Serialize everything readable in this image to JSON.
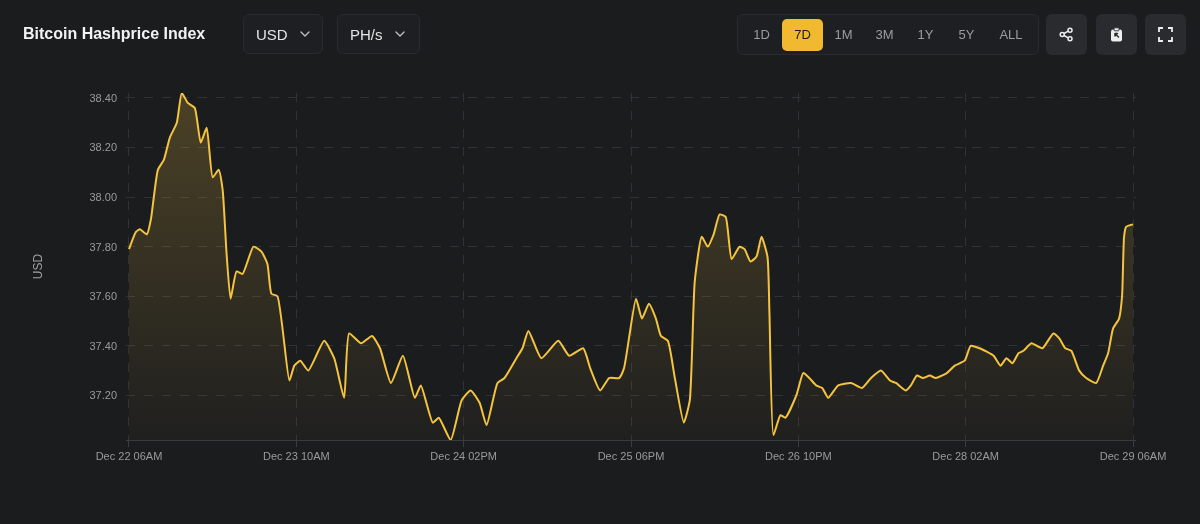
{
  "chart_data": {
    "type": "area",
    "title": "Bitcoin Hashprice Index",
    "ylabel": "USD",
    "annotations": [
      "USD",
      "PH/s",
      "1D",
      "7D",
      "1M",
      "3M",
      "1Y",
      "5Y",
      "ALL"
    ],
    "color": "#f4c43f",
    "grid": true,
    "xlim": [
      "--12-22T05:30",
      "--12-29T06:30"
    ],
    "xticks": [
      {
        "value": "--12-22T06:00",
        "label": "Dec 22 06AM"
      },
      {
        "value": "--12-23T10:00",
        "label": "Dec 23 10AM"
      },
      {
        "value": "--12-24T14:00",
        "label": "Dec 24 02PM"
      },
      {
        "value": "--12-25T18:00",
        "label": "Dec 25 06PM"
      },
      {
        "value": "--12-26T22:00",
        "label": "Dec 26 10PM"
      },
      {
        "value": "--12-28T02:00",
        "label": "Dec 28 02AM"
      },
      {
        "value": "--12-29T06:00",
        "label": "Dec 29 06AM"
      }
    ],
    "ylim": [
      37.02,
      38.42
    ],
    "yticks": [
      {
        "value": 37.2,
        "label": "37.20"
      },
      {
        "value": 37.4,
        "label": "37.40"
      },
      {
        "value": 37.6,
        "label": "37.60"
      },
      {
        "value": 37.8,
        "label": "37.80"
      },
      {
        "value": 38.0,
        "label": "38.00"
      },
      {
        "value": 38.2,
        "label": "38.20"
      },
      {
        "value": 38.4,
        "label": "38.40"
      }
    ],
    "x": [
      "--12-22T06:00",
      "--12-22T07:10",
      "--12-22T07:50",
      "--12-22T09:00",
      "--12-22T09:40",
      "--12-22T10:50",
      "--12-22T11:50",
      "--12-22T12:50",
      "--12-22T14:00",
      "--12-22T14:50",
      "--12-22T15:50",
      "--12-22T17:00",
      "--12-22T18:00",
      "--12-22T19:00",
      "--12-22T20:00",
      "--12-22T21:00",
      "--12-22T21:40",
      "--12-22T22:20",
      "--12-22T23:00",
      "--12-23T00:00",
      "--12-23T01:00",
      "--12-23T02:50",
      "--12-23T04:10",
      "--12-23T05:10",
      "--12-23T05:50",
      "--12-23T06:50",
      "--12-23T08:50",
      "--12-23T09:40",
      "--12-23T10:40",
      "--12-23T12:00",
      "--12-23T14:40",
      "--12-23T16:20",
      "--12-23T18:00",
      "--12-23T18:50",
      "--12-23T20:50",
      "--12-23T22:40",
      "--12-24T00:00",
      "--12-24T01:50",
      "--12-24T03:50",
      "--12-24T05:50",
      "--12-24T06:50",
      "--12-24T08:50",
      "--12-24T09:50",
      "--12-24T11:50",
      "--12-24T13:40",
      "--12-24T15:10",
      "--12-24T16:40",
      "--12-24T17:50",
      "--12-24T19:40",
      "--12-24T20:50",
      "--12-24T22:50",
      "--12-24T23:50",
      "--12-25T00:50",
      "--12-25T03:00",
      "--12-25T05:50",
      "--12-25T07:40",
      "--12-25T10:00",
      "--12-25T11:10",
      "--12-25T12:50",
      "--12-25T14:20",
      "--12-25T16:00",
      "--12-25T16:50",
      "--12-25T18:50",
      "--12-25T19:50",
      "--12-25T21:00",
      "--12-25T22:10",
      "--12-25T23:00",
      "--12-26T00:10",
      "--12-26T01:20",
      "--12-26T02:50",
      "--12-26T03:50",
      "--12-26T04:40",
      "--12-26T05:50",
      "--12-26T06:50",
      "--12-26T07:50",
      "--12-26T08:50",
      "--12-26T09:50",
      "--12-26T10:50",
      "--12-26T12:10",
      "--12-26T13:00",
      "--12-26T14:00",
      "--12-26T15:00",
      "--12-26T15:50",
      "--12-26T16:50",
      "--12-26T17:10",
      "--12-26T17:50",
      "--12-26T19:00",
      "--12-26T19:50",
      "--12-26T21:40",
      "--12-26T22:50",
      "--12-26T23:50",
      "--12-27T01:00",
      "--12-27T02:00",
      "--12-27T03:00",
      "--12-27T04:40",
      "--12-27T06:50",
      "--12-27T08:40",
      "--12-27T10:10",
      "--12-27T11:50",
      "--12-27T13:20",
      "--12-27T14:20",
      "--12-27T16:00",
      "--12-27T16:50",
      "--12-27T17:50",
      "--12-27T18:50",
      "--12-27T20:00",
      "--12-27T21:00",
      "--12-27T22:50",
      "--12-28T00:10",
      "--12-28T01:50",
      "--12-28T02:50",
      "--12-28T04:20",
      "--12-28T06:40",
      "--12-28T07:50",
      "--12-28T08:50",
      "--12-28T09:50",
      "--12-28T10:50",
      "--12-28T11:40",
      "--12-28T13:00",
      "--12-28T14:50",
      "--12-28T16:40",
      "--12-28T17:40",
      "--12-28T18:40",
      "--12-28T19:40",
      "--12-28T21:00",
      "--12-28T22:10",
      "--12-28T23:50",
      "--12-29T01:00",
      "--12-29T01:50",
      "--12-29T02:40",
      "--12-29T03:40",
      "--12-29T04:10",
      "--12-29T04:30",
      "--12-29T04:50",
      "--12-29T06:00"
    ],
    "values": [
      37.79,
      37.86,
      37.87,
      37.85,
      37.91,
      38.11,
      38.15,
      38.24,
      38.3,
      38.42,
      38.38,
      38.36,
      38.22,
      38.28,
      38.08,
      38.11,
      38.03,
      37.77,
      37.59,
      37.7,
      37.69,
      37.8,
      37.78,
      37.73,
      37.61,
      37.6,
      37.26,
      37.32,
      37.34,
      37.3,
      37.42,
      37.35,
      37.19,
      37.45,
      37.41,
      37.44,
      37.39,
      37.25,
      37.36,
      37.19,
      37.24,
      37.09,
      37.11,
      37.02,
      37.18,
      37.22,
      37.17,
      37.08,
      37.25,
      37.27,
      37.35,
      37.39,
      37.46,
      37.35,
      37.42,
      37.36,
      37.39,
      37.31,
      37.22,
      37.27,
      37.27,
      37.31,
      37.59,
      37.51,
      37.57,
      37.51,
      37.44,
      37.42,
      37.27,
      37.09,
      37.18,
      37.66,
      37.84,
      37.8,
      37.85,
      37.93,
      37.92,
      37.75,
      37.8,
      37.79,
      37.74,
      37.76,
      37.84,
      37.76,
      37.53,
      37.04,
      37.12,
      37.11,
      37.2,
      37.29,
      37.27,
      37.24,
      37.23,
      37.19,
      37.24,
      37.25,
      37.23,
      37.27,
      37.3,
      37.26,
      37.25,
      37.22,
      37.24,
      37.28,
      37.27,
      37.28,
      37.27,
      37.29,
      37.32,
      37.34,
      37.4,
      37.39,
      37.36,
      37.32,
      37.35,
      37.33,
      37.37,
      37.38,
      37.41,
      37.39,
      37.45,
      37.43,
      37.39,
      37.38,
      37.3,
      37.27,
      37.25,
      37.32,
      37.37,
      37.47,
      37.51,
      37.6,
      37.84,
      37.88,
      37.89
    ]
  }
}
